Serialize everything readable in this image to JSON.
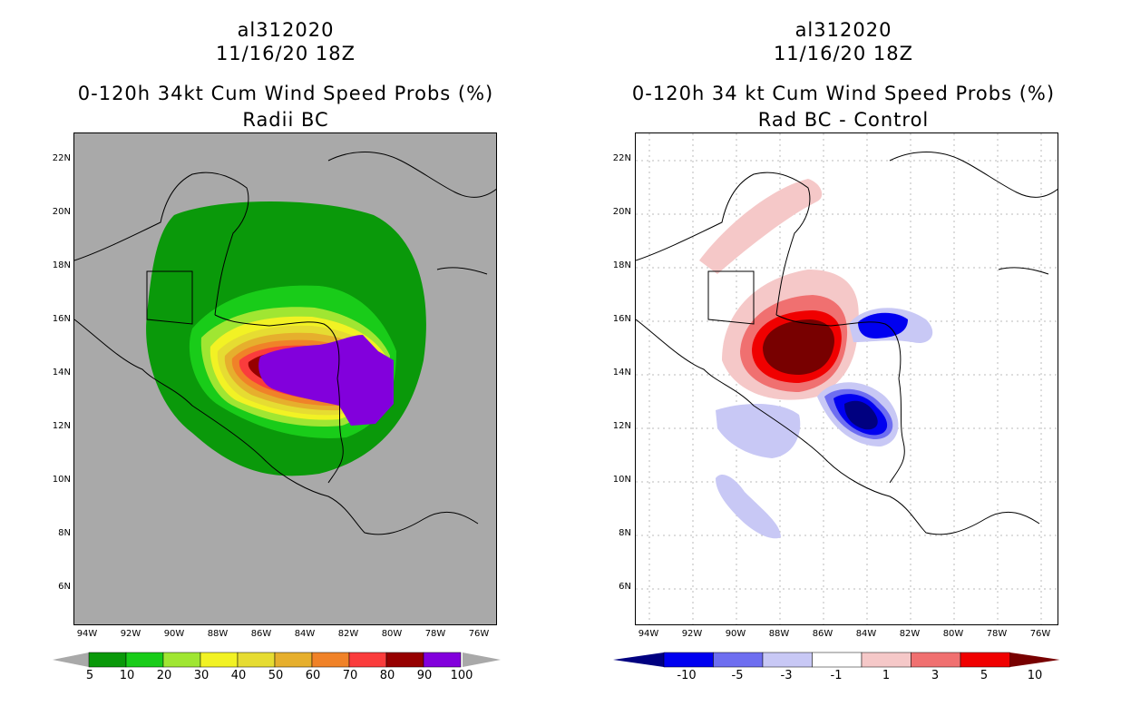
{
  "left_panel": {
    "storm_id": "al312020",
    "datetime": "11/16/20 18Z",
    "title": "0-120h 34kt Cum Wind Speed Probs (%)",
    "subtitle": "Radii BC",
    "colorbar": {
      "labels": [
        "5",
        "10",
        "20",
        "30",
        "40",
        "50",
        "60",
        "70",
        "80",
        "90",
        "100"
      ],
      "colors": [
        "#0a990a",
        "#19cc19",
        "#a0e632",
        "#f2f224",
        "#e6dc32",
        "#e6af2d",
        "#f08228",
        "#fa3c3c",
        "#960000",
        "#8200dc"
      ]
    }
  },
  "right_panel": {
    "storm_id": "al312020",
    "datetime": "11/16/20 18Z",
    "title": "0-120h 34 kt Cum Wind Speed Probs (%)",
    "subtitle": "Rad BC - Control",
    "colorbar": {
      "labels": [
        "-10",
        "-5",
        "-3",
        "-1",
        "1",
        "3",
        "5",
        "10"
      ],
      "colors": [
        "#000080",
        "#0000f0",
        "#6e6ef0",
        "#c8c8f5",
        "#ffffff",
        "#f5c8c8",
        "#f07070",
        "#f00000",
        "#780000"
      ]
    }
  },
  "axes": {
    "lat_labels": [
      "22N",
      "20N",
      "18N",
      "16N",
      "14N",
      "12N",
      "10N",
      "8N",
      "6N"
    ],
    "lon_labels": [
      "94W",
      "92W",
      "90W",
      "88W",
      "86W",
      "84W",
      "82W",
      "80W",
      "78W",
      "76W"
    ]
  }
}
